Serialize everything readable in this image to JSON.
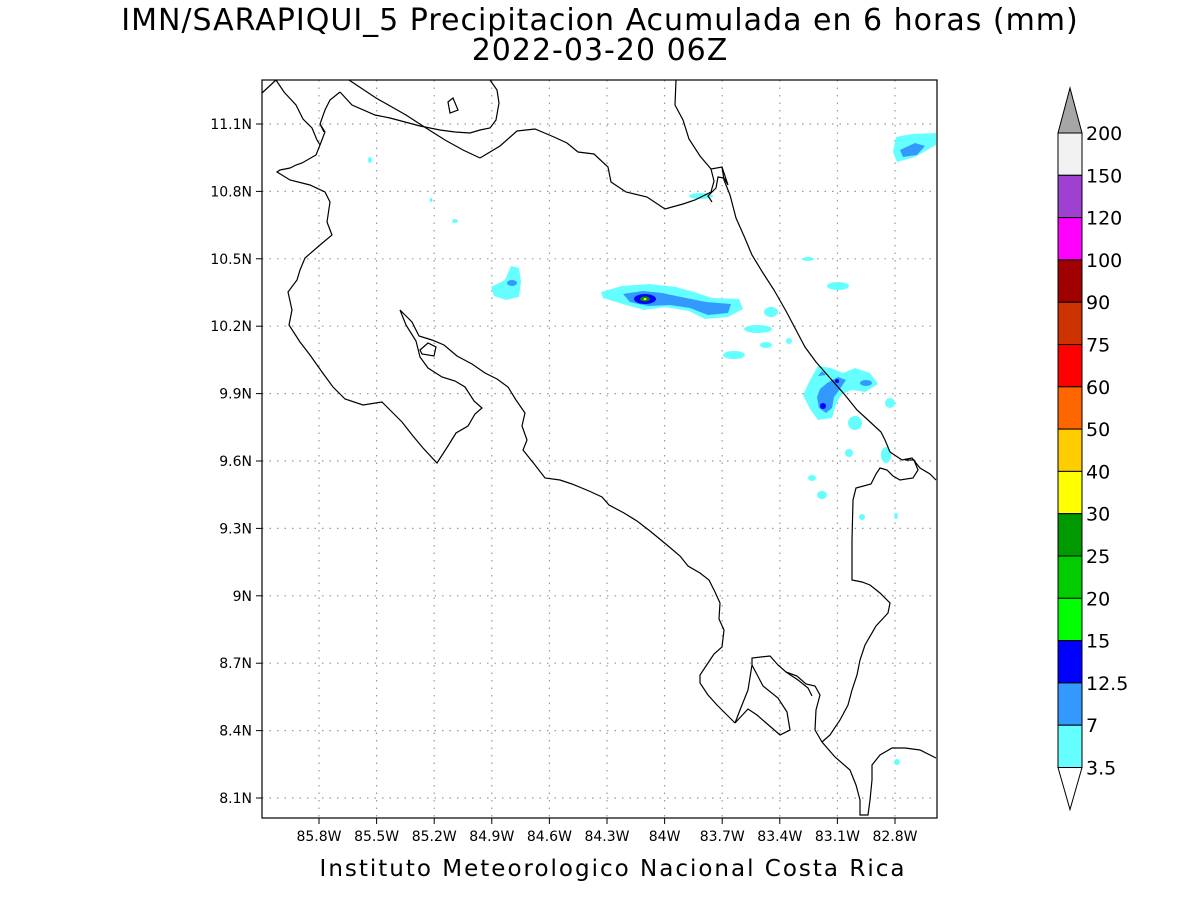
{
  "title": "IMN/SARAPIQUI_5 Precipitacion Acumulada en 6 horas (mm)",
  "subtitle": "2022-03-20 06Z",
  "footer": "Instituto Meteorologico Nacional Costa Rica",
  "map": {
    "lon_range": [
      -86.0,
      -83.0
    ],
    "lat_range": [
      8.0,
      11.3
    ],
    "x_ticks": [
      {
        "value": -85.8,
        "label": "85.8W"
      },
      {
        "value": -85.5,
        "label": "85.5W"
      },
      {
        "value": -85.2,
        "label": "85.2W"
      },
      {
        "value": -84.9,
        "label": "84.9W"
      },
      {
        "value": -84.6,
        "label": "84.6W"
      },
      {
        "value": -84.3,
        "label": "84.3W"
      },
      {
        "value": -84.0,
        "label": "84W"
      },
      {
        "value": -83.7,
        "label": "83.7W"
      },
      {
        "value": -83.4,
        "label": "83.4W"
      },
      {
        "value": -83.1,
        "label": "83.1W"
      },
      {
        "value": -82.8,
        "label": "82.8W"
      }
    ],
    "y_ticks": [
      {
        "value": 11.1,
        "label": "11.1N"
      },
      {
        "value": 10.8,
        "label": "10.8N"
      },
      {
        "value": 10.5,
        "label": "10.5N"
      },
      {
        "value": 10.2,
        "label": "10.2N"
      },
      {
        "value": 9.9,
        "label": "9.9N"
      },
      {
        "value": 9.6,
        "label": "9.6N"
      },
      {
        "value": 9.3,
        "label": "9.3N"
      },
      {
        "value": 9.0,
        "label": "9N"
      },
      {
        "value": 8.7,
        "label": "8.7N"
      },
      {
        "value": 8.4,
        "label": "8.4N"
      },
      {
        "value": 8.1,
        "label": "8.1N"
      }
    ],
    "grid": "dotted"
  },
  "colorbar": {
    "levels": [
      "200",
      "150",
      "120",
      "100",
      "90",
      "75",
      "60",
      "50",
      "40",
      "30",
      "25",
      "20",
      "15",
      "12.5",
      "7",
      "3.5"
    ],
    "colors": [
      "#f2f2f2",
      "#a040d0",
      "#ff00ff",
      "#a00000",
      "#cc3300",
      "#ff0000",
      "#ff6600",
      "#ffcc00",
      "#ffff00",
      "#009900",
      "#00cc00",
      "#00ff00",
      "#0000ff",
      "#3399ff",
      "#66ffff"
    ],
    "top_arrow_color": "#a6a6a6",
    "bottom_arrow_color": "#ffffff"
  },
  "precip_areas": [
    {
      "lon": -82.8,
      "lat": 11.05,
      "level": "3.5"
    },
    {
      "lon": -82.8,
      "lat": 11.05,
      "level": "7"
    },
    {
      "lon": -84.65,
      "lat": 10.4,
      "level": "3.5"
    },
    {
      "lon": -84.0,
      "lat": 10.33,
      "level": "3.5"
    },
    {
      "lon": -84.0,
      "lat": 10.31,
      "level": "7"
    },
    {
      "lon": -84.0,
      "lat": 10.31,
      "level": "12.5"
    },
    {
      "lon": -84.0,
      "lat": 10.31,
      "level": "30"
    },
    {
      "lon": -83.7,
      "lat": 10.27,
      "level": "7"
    },
    {
      "lon": -83.1,
      "lat": 9.85,
      "level": "3.5"
    },
    {
      "lon": -83.07,
      "lat": 9.88,
      "level": "7"
    },
    {
      "lon": -83.1,
      "lat": 9.83,
      "level": "12.5"
    }
  ]
}
